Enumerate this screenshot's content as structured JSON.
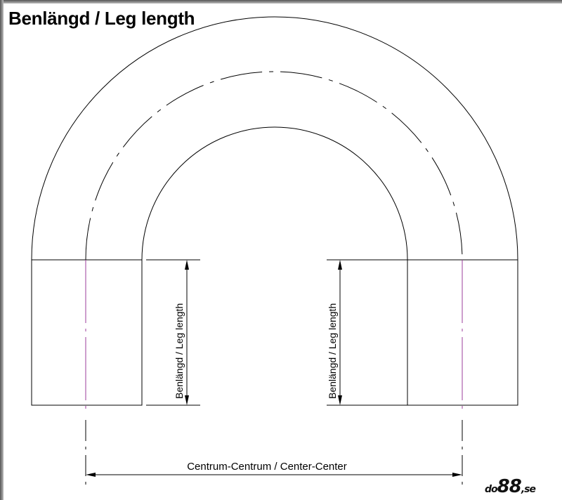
{
  "title": "Benlängd / Leg length",
  "leg_label": "Benlängd / Leg length",
  "center_label": "Centrum-Centrum / Center-Center",
  "logo": {
    "text": "do88.se",
    "part1": "do",
    "part2": "88",
    "part3": ",se"
  },
  "colors": {
    "line": "#000000",
    "centerline": "#9b3c9b"
  }
}
